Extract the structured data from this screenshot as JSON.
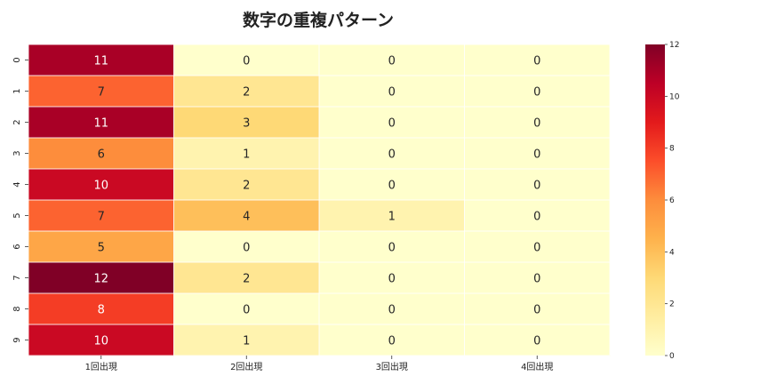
{
  "chart_data": {
    "type": "heatmap",
    "title": "数字の重複パターン",
    "xlabel": "",
    "ylabel": "",
    "x_categories": [
      "1回出現",
      "2回出現",
      "3回出現",
      "4回出現"
    ],
    "y_categories": [
      "0",
      "1",
      "2",
      "3",
      "4",
      "5",
      "6",
      "7",
      "8",
      "9"
    ],
    "values": [
      [
        11,
        0,
        0,
        0
      ],
      [
        7,
        2,
        0,
        0
      ],
      [
        11,
        3,
        0,
        0
      ],
      [
        6,
        1,
        0,
        0
      ],
      [
        10,
        2,
        0,
        0
      ],
      [
        7,
        4,
        1,
        0
      ],
      [
        5,
        0,
        0,
        0
      ],
      [
        12,
        2,
        0,
        0
      ],
      [
        8,
        0,
        0,
        0
      ],
      [
        10,
        1,
        0,
        0
      ]
    ],
    "colormap": "YlOrRd",
    "colorbar": {
      "range": [
        0,
        12
      ],
      "ticks": [
        "0",
        "2",
        "4",
        "6",
        "8",
        "10",
        "12"
      ]
    },
    "grid": true,
    "annotations": true
  }
}
